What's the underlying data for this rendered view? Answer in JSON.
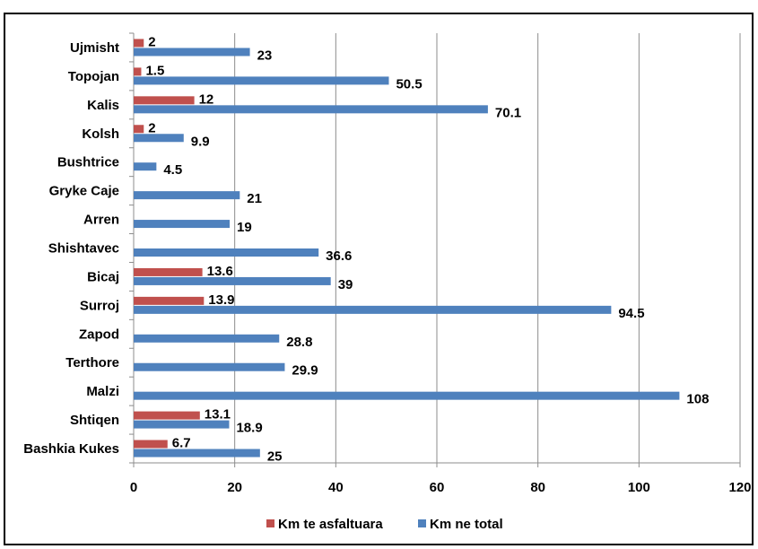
{
  "chart_data": {
    "type": "bar",
    "orientation": "horizontal",
    "categories": [
      "Ujmisht",
      "Topojan",
      "Kalis",
      "Kolsh",
      "Bushtrice",
      "Gryke Caje",
      "Arren",
      "Shishtavec",
      "Bicaj",
      "Surroj",
      "Zapod",
      "Terthore",
      "Malzi",
      "Shtiqen",
      "Bashkia Kukes"
    ],
    "series": [
      {
        "name": "Km te asfaltuara",
        "color": "#c0504d",
        "values": [
          2,
          1.5,
          12,
          2,
          null,
          null,
          null,
          null,
          13.6,
          13.9,
          null,
          null,
          null,
          13.1,
          6.7
        ],
        "labels": [
          "2",
          "1.5",
          "12",
          "2",
          "",
          "",
          "",
          "",
          "13.6",
          "13.9",
          "",
          "",
          "",
          "13.1",
          "6.7"
        ]
      },
      {
        "name": "Km ne total",
        "color": "#4f81bd",
        "values": [
          23,
          50.5,
          70.1,
          9.9,
          4.5,
          21,
          19,
          36.6,
          39,
          94.5,
          28.8,
          29.9,
          108,
          18.9,
          25
        ],
        "labels": [
          "23",
          "50.5",
          "70.1",
          "9.9",
          "4.5",
          "21",
          "19",
          "36.6",
          "39",
          "94.5",
          "28.8",
          "29.9",
          "108",
          "18.9",
          "25"
        ]
      }
    ],
    "xlim": [
      0,
      120
    ],
    "xticks": [
      "0",
      "20",
      "40",
      "60",
      "80",
      "100",
      "120"
    ],
    "grid": "vertical",
    "legend_position": "bottom"
  }
}
